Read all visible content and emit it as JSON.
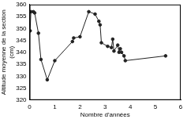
{
  "chart_data": {
    "type": "line",
    "x_label": "Nombre d'années",
    "y_label": [
      "Altitude moyenne de la section",
      "(cm)"
    ],
    "x": [
      0.02,
      0.05,
      0.15,
      0.2,
      0.35,
      0.45,
      0.7,
      1.0,
      1.7,
      1.75,
      2.0,
      2.35,
      2.6,
      2.75,
      2.8,
      2.85,
      3.1,
      3.25,
      3.3,
      3.35,
      3.5,
      3.55,
      3.6,
      3.65,
      3.75,
      3.8,
      5.4
    ],
    "values": [
      349,
      357,
      357,
      356.5,
      348,
      337,
      328.5,
      336.5,
      344.5,
      346,
      346.5,
      357,
      356,
      353,
      351.5,
      344,
      342.5,
      342,
      345.5,
      340.5,
      343,
      340,
      341.5,
      340,
      338.5,
      336.5,
      338.5
    ],
    "color": "#222222",
    "marker": "circle",
    "xlim": [
      0,
      6
    ],
    "xticks": [
      0,
      1,
      2,
      3,
      4,
      5,
      6
    ],
    "ylim": [
      320,
      360
    ],
    "yticks": [
      320,
      325,
      330,
      335,
      340,
      345,
      350,
      355,
      360
    ],
    "grid": false
  }
}
